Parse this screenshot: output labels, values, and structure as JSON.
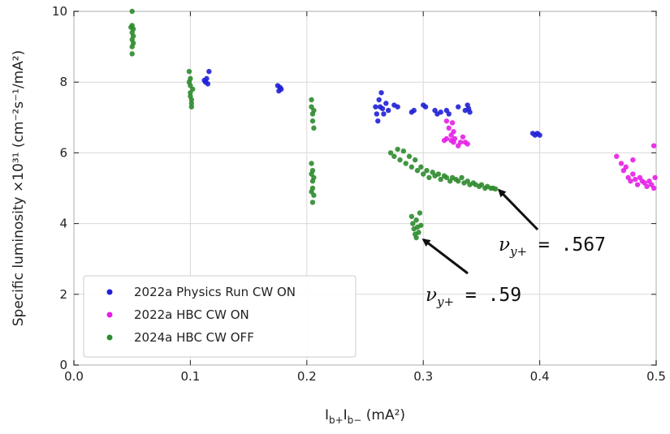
{
  "chart_data": {
    "type": "scatter",
    "title": "",
    "xlabel": "I_{b+} I_{b−} (mA²)",
    "ylabel": "Specific luminosity ×10³¹ (cm⁻²s⁻¹/mA²)",
    "xlim": [
      0.0,
      0.5
    ],
    "ylim": [
      0,
      10
    ],
    "xticks": [
      "0.0",
      "0.1",
      "0.2",
      "0.3",
      "0.4",
      "0.5"
    ],
    "yticks": [
      "0",
      "2",
      "4",
      "6",
      "8",
      "10"
    ],
    "grid": true,
    "legend_position": "bottom-left",
    "series": [
      {
        "name": "2022a Physics Run CW ON",
        "color": "#1f1fd6",
        "points": [
          [
            0.113,
            8.0
          ],
          [
            0.114,
            8.1
          ],
          [
            0.115,
            7.95
          ],
          [
            0.116,
            8.3
          ],
          [
            0.112,
            8.05
          ],
          [
            0.175,
            7.9
          ],
          [
            0.176,
            7.75
          ],
          [
            0.177,
            7.85
          ],
          [
            0.178,
            7.8
          ],
          [
            0.259,
            7.3
          ],
          [
            0.26,
            7.1
          ],
          [
            0.261,
            6.9
          ],
          [
            0.262,
            7.5
          ],
          [
            0.263,
            7.3
          ],
          [
            0.264,
            7.7
          ],
          [
            0.265,
            7.25
          ],
          [
            0.266,
            7.1
          ],
          [
            0.268,
            7.4
          ],
          [
            0.27,
            7.2
          ],
          [
            0.275,
            7.35
          ],
          [
            0.278,
            7.3
          ],
          [
            0.29,
            7.15
          ],
          [
            0.292,
            7.2
          ],
          [
            0.3,
            7.35
          ],
          [
            0.302,
            7.3
          ],
          [
            0.31,
            7.2
          ],
          [
            0.312,
            7.1
          ],
          [
            0.315,
            7.15
          ],
          [
            0.32,
            7.2
          ],
          [
            0.322,
            7.1
          ],
          [
            0.33,
            7.3
          ],
          [
            0.336,
            7.2
          ],
          [
            0.338,
            7.35
          ],
          [
            0.34,
            7.15
          ],
          [
            0.339,
            7.25
          ],
          [
            0.394,
            6.55
          ],
          [
            0.396,
            6.5
          ],
          [
            0.398,
            6.55
          ],
          [
            0.4,
            6.5
          ]
        ]
      },
      {
        "name": "2022a HBC CW ON",
        "color": "#e61ee6",
        "points": [
          [
            0.32,
            6.9
          ],
          [
            0.322,
            6.7
          ],
          [
            0.324,
            6.5
          ],
          [
            0.325,
            6.85
          ],
          [
            0.326,
            6.6
          ],
          [
            0.318,
            6.35
          ],
          [
            0.32,
            6.4
          ],
          [
            0.324,
            6.35
          ],
          [
            0.327,
            6.4
          ],
          [
            0.33,
            6.2
          ],
          [
            0.332,
            6.3
          ],
          [
            0.334,
            6.45
          ],
          [
            0.336,
            6.3
          ],
          [
            0.338,
            6.25
          ],
          [
            0.326,
            6.3
          ],
          [
            0.466,
            5.9
          ],
          [
            0.47,
            5.7
          ],
          [
            0.472,
            5.5
          ],
          [
            0.474,
            5.6
          ],
          [
            0.476,
            5.3
          ],
          [
            0.478,
            5.2
          ],
          [
            0.48,
            5.4
          ],
          [
            0.482,
            5.25
          ],
          [
            0.484,
            5.1
          ],
          [
            0.486,
            5.3
          ],
          [
            0.488,
            5.2
          ],
          [
            0.49,
            5.15
          ],
          [
            0.492,
            5.05
          ],
          [
            0.494,
            5.2
          ],
          [
            0.496,
            5.1
          ],
          [
            0.498,
            5.0
          ],
          [
            0.499,
            5.3
          ],
          [
            0.498,
            6.2
          ],
          [
            0.48,
            5.8
          ]
        ]
      },
      {
        "name": "2024a HBC CW OFF",
        "color": "#2e8b2e",
        "points": [
          [
            0.05,
            10.0
          ],
          [
            0.05,
            9.6
          ],
          [
            0.05,
            9.4
          ],
          [
            0.05,
            9.2
          ],
          [
            0.05,
            9.0
          ],
          [
            0.05,
            8.8
          ],
          [
            0.051,
            9.5
          ],
          [
            0.051,
            9.3
          ],
          [
            0.051,
            9.1
          ],
          [
            0.049,
            9.55
          ],
          [
            0.099,
            8.3
          ],
          [
            0.1,
            8.1
          ],
          [
            0.1,
            7.9
          ],
          [
            0.1,
            7.7
          ],
          [
            0.101,
            7.5
          ],
          [
            0.101,
            7.3
          ],
          [
            0.099,
            8.0
          ],
          [
            0.1,
            7.6
          ],
          [
            0.101,
            7.4
          ],
          [
            0.102,
            7.8
          ],
          [
            0.204,
            7.5
          ],
          [
            0.204,
            7.3
          ],
          [
            0.205,
            7.1
          ],
          [
            0.205,
            6.9
          ],
          [
            0.206,
            6.7
          ],
          [
            0.204,
            5.7
          ],
          [
            0.204,
            5.4
          ],
          [
            0.205,
            5.2
          ],
          [
            0.205,
            5.0
          ],
          [
            0.206,
            4.8
          ],
          [
            0.205,
            4.6
          ],
          [
            0.206,
            5.3
          ],
          [
            0.204,
            4.9
          ],
          [
            0.205,
            5.5
          ],
          [
            0.206,
            7.2
          ],
          [
            0.272,
            6.0
          ],
          [
            0.275,
            5.9
          ],
          [
            0.278,
            6.1
          ],
          [
            0.28,
            5.8
          ],
          [
            0.283,
            6.05
          ],
          [
            0.285,
            5.7
          ],
          [
            0.288,
            5.9
          ],
          [
            0.29,
            5.6
          ],
          [
            0.293,
            5.8
          ],
          [
            0.295,
            5.5
          ],
          [
            0.298,
            5.6
          ],
          [
            0.3,
            5.4
          ],
          [
            0.303,
            5.5
          ],
          [
            0.305,
            5.3
          ],
          [
            0.308,
            5.45
          ],
          [
            0.31,
            5.35
          ],
          [
            0.313,
            5.4
          ],
          [
            0.315,
            5.25
          ],
          [
            0.318,
            5.35
          ],
          [
            0.32,
            5.3
          ],
          [
            0.323,
            5.2
          ],
          [
            0.325,
            5.3
          ],
          [
            0.328,
            5.25
          ],
          [
            0.33,
            5.2
          ],
          [
            0.333,
            5.3
          ],
          [
            0.335,
            5.15
          ],
          [
            0.338,
            5.2
          ],
          [
            0.34,
            5.1
          ],
          [
            0.343,
            5.15
          ],
          [
            0.345,
            5.1
          ],
          [
            0.348,
            5.05
          ],
          [
            0.35,
            5.1
          ],
          [
            0.353,
            5.0
          ],
          [
            0.355,
            5.05
          ],
          [
            0.358,
            5.0
          ],
          [
            0.36,
            5.0
          ],
          [
            0.362,
            4.98
          ],
          [
            0.29,
            4.2
          ],
          [
            0.291,
            4.0
          ],
          [
            0.292,
            3.85
          ],
          [
            0.293,
            3.7
          ],
          [
            0.294,
            4.1
          ],
          [
            0.295,
            3.9
          ],
          [
            0.296,
            3.75
          ],
          [
            0.297,
            4.3
          ],
          [
            0.298,
            3.95
          ],
          [
            0.294,
            3.6
          ]
        ]
      }
    ],
    "annotations": [
      {
        "label": "ν",
        "subscript": "y+",
        "value": "= .567",
        "target": [
          0.365,
          4.95
        ]
      },
      {
        "label": "ν",
        "subscript": "y+",
        "value": "= .59",
        "target": [
          0.3,
          3.55
        ]
      }
    ]
  }
}
